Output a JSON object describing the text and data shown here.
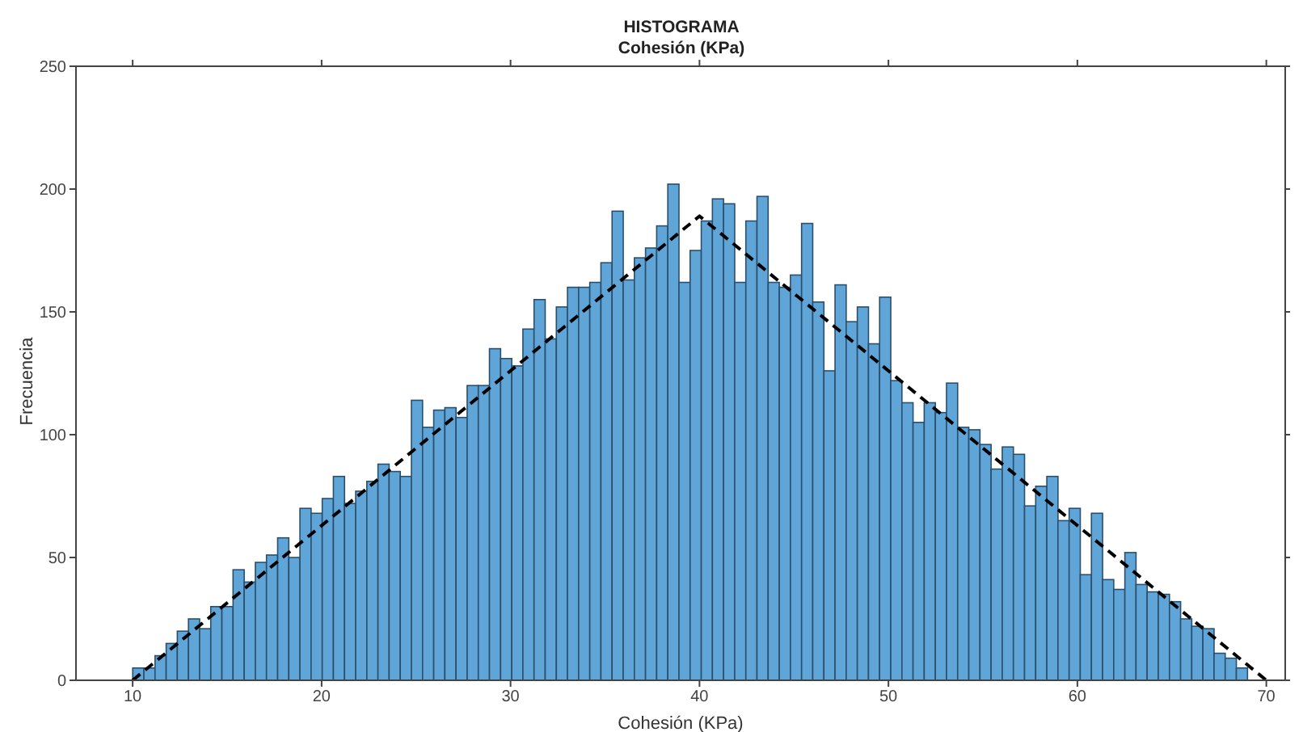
{
  "chart_data": {
    "type": "histogram",
    "title": "HISTOGRAMA",
    "subtitle": "Cohesión (KPa)",
    "xlabel": "Cohesión (KPa)",
    "ylabel": "Frecuencia",
    "bins": [
      10,
      10.59,
      11.18,
      11.77,
      12.36,
      12.95,
      13.54,
      14.13,
      14.72,
      15.31,
      15.9,
      16.49,
      17.08,
      17.67,
      18.26,
      18.85,
      19.44,
      20.03,
      20.62,
      21.21,
      21.8,
      22.39,
      22.98,
      23.57,
      24.16,
      24.75,
      25.34,
      25.93,
      26.52,
      27.11,
      27.7,
      28.29,
      28.88,
      29.47,
      30.06,
      30.65,
      31.24,
      31.83,
      32.42,
      33.01,
      33.6,
      34.19,
      34.78,
      35.37,
      35.96,
      36.55,
      37.14,
      37.73,
      38.32,
      38.91,
      39.5,
      40.09,
      40.68,
      41.27,
      41.86,
      42.45,
      43.04,
      43.63,
      44.22,
      44.81,
      45.4,
      45.99,
      46.58,
      47.17,
      47.76,
      48.35,
      48.94,
      49.53,
      50.12,
      50.71,
      51.3,
      51.89,
      52.48,
      53.07,
      53.66,
      54.25,
      54.84,
      55.43,
      56.02,
      56.61,
      57.2,
      57.79,
      58.38,
      58.97,
      59.56,
      60.15,
      60.74,
      61.33,
      61.92,
      62.51,
      63.1,
      63.69,
      64.28,
      64.87,
      65.46,
      66.05,
      66.64,
      67.23,
      67.82,
      68.41,
      69
    ],
    "values": [
      5,
      5,
      10,
      15,
      20,
      25,
      21,
      30,
      30,
      45,
      40,
      48,
      51,
      58,
      50,
      70,
      68,
      74,
      83,
      72,
      77,
      81,
      88,
      85,
      83,
      114,
      103,
      110,
      111,
      107,
      120,
      120,
      135,
      131,
      128,
      143,
      155,
      139,
      152,
      160,
      160,
      162,
      170,
      191,
      163,
      172,
      176,
      185,
      202,
      162,
      175,
      187,
      196,
      194,
      162,
      187,
      197,
      162,
      160,
      165,
      186,
      154,
      126,
      161,
      146,
      152,
      137,
      156,
      122,
      113,
      105,
      113,
      109,
      121,
      103,
      102,
      96,
      86,
      95,
      92,
      71,
      79,
      83,
      65,
      70,
      43,
      68,
      41,
      37,
      52,
      39,
      36,
      35,
      32,
      25,
      22,
      21,
      11,
      9,
      5
    ],
    "color": "#5fa5d8",
    "series": [
      {
        "type": "line",
        "x": [
          10,
          40,
          70
        ],
        "values": [
          0,
          189,
          0
        ],
        "color": "#000000",
        "line_style": "dashed",
        "marker": "none"
      }
    ],
    "xlim": [
      7,
      71
    ],
    "xticks": [
      10,
      20,
      30,
      40,
      50,
      60,
      70
    ],
    "ylim": [
      0,
      250
    ],
    "yticks": [
      0,
      50,
      100,
      150,
      200,
      250
    ],
    "grid": false,
    "legend": false
  }
}
